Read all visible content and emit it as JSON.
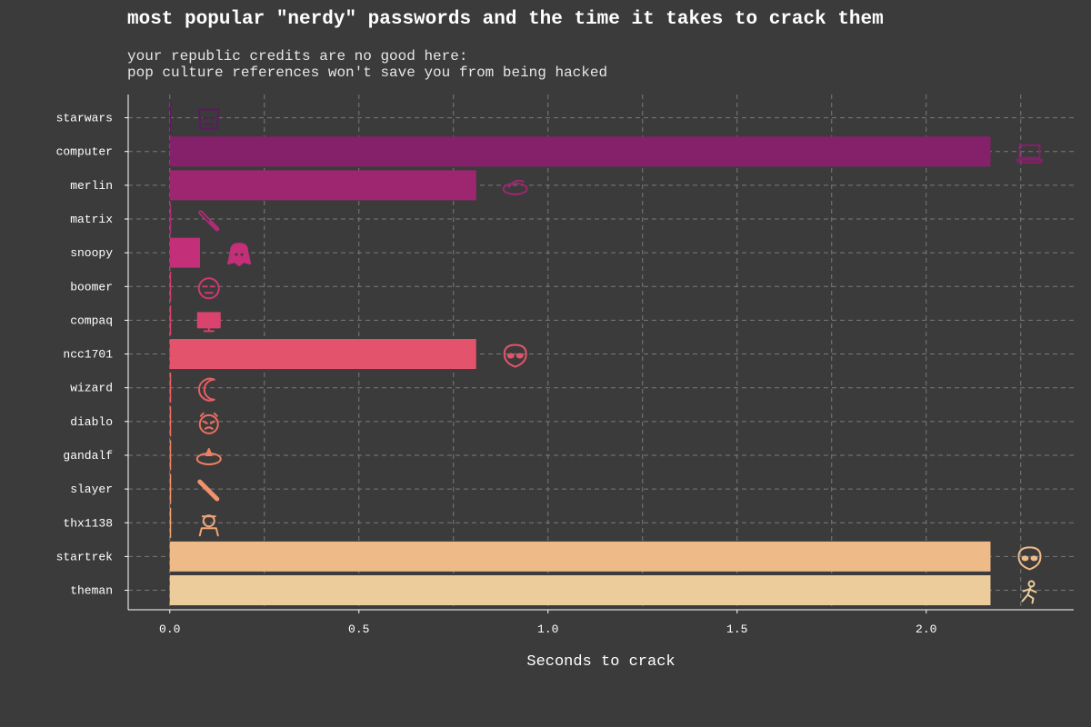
{
  "chart_data": {
    "type": "bar",
    "orientation": "horizontal",
    "title": "most popular \"nerdy\" passwords and the time it takes to crack them",
    "subtitle": [
      "your republic credits are no good here:",
      "pop culture references won't save you from being hacked"
    ],
    "xlabel": "Seconds to crack",
    "ylabel": "",
    "xlim": [
      -0.11,
      2.39
    ],
    "x_ticks": [
      "0.0",
      "0.5",
      "1.0",
      "1.5",
      "2.0"
    ],
    "grid": true,
    "legend": "none",
    "categories": [
      "starwars",
      "computer",
      "merlin",
      "matrix",
      "snoopy",
      "boomer",
      "compaq",
      "ncc1701",
      "wizard",
      "diablo",
      "gandalf",
      "slayer",
      "thx1138",
      "startrek",
      "theman"
    ],
    "values": [
      0.0,
      2.17,
      0.81,
      0.0,
      0.08,
      0.0,
      0.0,
      0.81,
      0.0,
      0.0,
      0.0,
      0.0,
      0.0,
      2.17,
      2.17
    ],
    "colors": [
      "#5c1a5e",
      "#85216b",
      "#9e2670",
      "#b12c74",
      "#c32f78",
      "#cf3a72",
      "#d9436e",
      "#e3546c",
      "#e85f63",
      "#ec6f61",
      "#ef8063",
      "#f1926a",
      "#f1a576",
      "#edba88",
      "#edcc9c"
    ],
    "icons": [
      "stormtrooper-icon",
      "laptop-icon",
      "wizard-hat-icon",
      "matrix-pill-icon",
      "snoopy-dog-icon",
      "old-man-icon",
      "computer-monitor-icon",
      "alien-icon",
      "moon-icon",
      "devil-face-icon",
      "gandalf-hat-icon",
      "sword-icon",
      "robot-soldier-icon",
      "alien-icon",
      "running-man-icon"
    ]
  },
  "background": "#3b3b3b",
  "grid_color": "#7a7a7a"
}
